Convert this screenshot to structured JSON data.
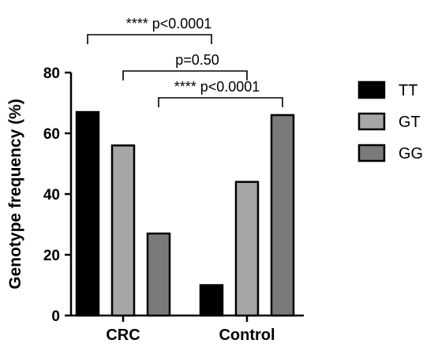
{
  "chart_data": {
    "type": "bar",
    "title": "",
    "xlabel": "",
    "ylabel": "Genotype frequency (%)",
    "ylim": [
      0,
      80
    ],
    "yticks": [
      0,
      20,
      40,
      60,
      80
    ],
    "categories": [
      "CRC",
      "Control"
    ],
    "series": [
      {
        "name": "TT",
        "values": [
          67,
          10
        ],
        "color": "#000000"
      },
      {
        "name": "GT",
        "values": [
          56,
          44
        ],
        "color": "#a6a6a8"
      },
      {
        "name": "GG",
        "values": [
          27,
          66
        ],
        "color": "#7a7a7a"
      }
    ],
    "legend": "right",
    "grid": false,
    "annotations": [
      {
        "text": "**** p<0.0001",
        "from": {
          "category": 0,
          "series": 0
        },
        "to": {
          "category": 1,
          "series": 0
        }
      },
      {
        "text": "p=0.50",
        "from": {
          "category": 0,
          "series": 1
        },
        "to": {
          "category": 1,
          "series": 1
        }
      },
      {
        "text": "**** p<0.0001",
        "from": {
          "category": 0,
          "series": 2
        },
        "to": {
          "category": 1,
          "series": 2
        }
      }
    ]
  }
}
